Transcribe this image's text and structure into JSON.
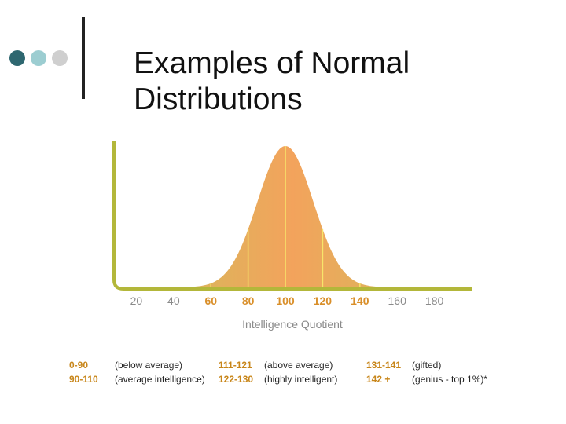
{
  "slide": {
    "title_lines": [
      "Examples of Normal",
      "Distributions"
    ],
    "dot_colors": [
      "#2e6770",
      "#9ccdd1",
      "#cfcfcf"
    ]
  },
  "chart_data": {
    "type": "area",
    "xlabel": "Intelligence Quotient",
    "ylabel": "",
    "mean": 100,
    "sd": 15,
    "xlim": [
      8,
      200
    ],
    "xticks": [
      {
        "value": 20,
        "label": "20",
        "highlight": false
      },
      {
        "value": 40,
        "label": "40",
        "highlight": false
      },
      {
        "value": 60,
        "label": "60",
        "highlight": true
      },
      {
        "value": 80,
        "label": "80",
        "highlight": true
      },
      {
        "value": 100,
        "label": "100",
        "highlight": true
      },
      {
        "value": 120,
        "label": "120",
        "highlight": true
      },
      {
        "value": 140,
        "label": "140",
        "highlight": true
      },
      {
        "value": 160,
        "label": "160",
        "highlight": false
      },
      {
        "value": 180,
        "label": "180",
        "highlight": false
      }
    ],
    "vertical_lines": [
      60,
      80,
      100,
      120,
      140
    ],
    "colors": {
      "axis": "#b3b73a",
      "fill_center": "#f3a35c",
      "fill_edge": "#c9c25a",
      "line": "#f7e56a",
      "tick_normal": "#8a8a8a",
      "tick_highlight": "#d98f2a"
    }
  },
  "legend": {
    "rows": [
      [
        {
          "range": "0-90",
          "desc": "(below average)"
        },
        {
          "range": "111-121",
          "desc": "(above average)"
        },
        {
          "range": "131-141",
          "desc": "(gifted)"
        }
      ],
      [
        {
          "range": "90-110",
          "desc": "(average intelligence)"
        },
        {
          "range": "122-130",
          "desc": "(highly intelligent)"
        },
        {
          "range": "142 +",
          "desc": "(genius - top 1%)*"
        }
      ]
    ]
  }
}
